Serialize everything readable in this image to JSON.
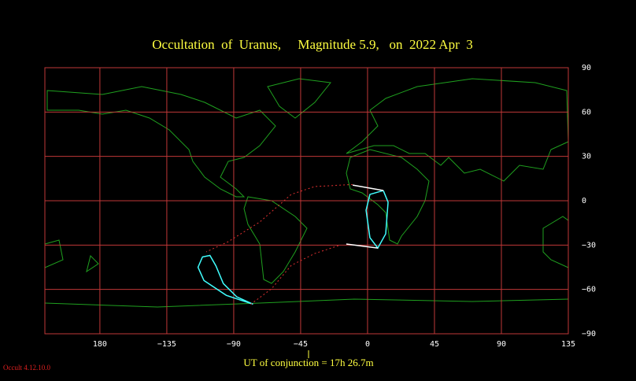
{
  "chart_data": {
    "type": "map",
    "title": "Occultation  of  Uranus,     Magnitude 5.9,   on  2022 Apr  3",
    "xlim": [
      -217,
      135
    ],
    "ylim": [
      -90,
      90
    ],
    "xticks": [
      {
        "value": -180,
        "label": "180"
      },
      {
        "value": -135,
        "label": "−135"
      },
      {
        "value": -90,
        "label": "−90"
      },
      {
        "value": -45,
        "label": "−45"
      },
      0,
      45,
      90,
      135
    ],
    "yticks": [
      90,
      60,
      30,
      0,
      {
        "value": -30,
        "label": "−30"
      },
      {
        "value": -60,
        "label": "−60"
      },
      {
        "value": -90,
        "label": "−90"
      }
    ],
    "grid": true,
    "grid_color": "#c03838",
    "series": [
      {
        "color": "#40ffff",
        "x": [
          -77,
          -95,
          -110,
          -114,
          -111,
          -106,
          -102,
          -97,
          -88,
          -77
        ],
        "values": [
          -70,
          -64,
          -54,
          -45,
          -38,
          -37,
          -44,
          -56,
          -65,
          -70
        ]
      },
      {
        "color": "#40ffff",
        "x": [
          10.6,
          13.8,
          12.2,
          6.9,
          1.6,
          -1,
          1.6,
          10.6
        ],
        "values": [
          6.9,
          -1,
          -22.4,
          -32,
          -25,
          -6.4,
          4.3,
          6.9
        ]
      },
      {
        "color": "#ffffff",
        "x": [
          -10,
          10.6
        ],
        "values": [
          10.6,
          6.9
        ]
      },
      {
        "color": "#ffffff",
        "x": [
          -14.3,
          6.9
        ],
        "values": [
          -29.3,
          -32
        ]
      },
      {
        "color": "#e03030",
        "dashed": true,
        "x": [
          -10,
          -35.5,
          -51.3,
          -72.5,
          -93.7,
          -108.5
        ],
        "values": [
          11,
          9.6,
          4.3,
          -14.4,
          -27.7,
          -34.6
        ]
      },
      {
        "color": "#e03030",
        "dashed": true,
        "x": [
          -19.6,
          -35.5,
          -51.3,
          -64.6,
          -78.9
        ],
        "values": [
          -30.4,
          -35.7,
          -43.7,
          -59.6,
          -70.3
        ]
      }
    ],
    "footer": "UT of conjunction = 17h 26.7m",
    "version": "Occult 4.12.10.0"
  }
}
